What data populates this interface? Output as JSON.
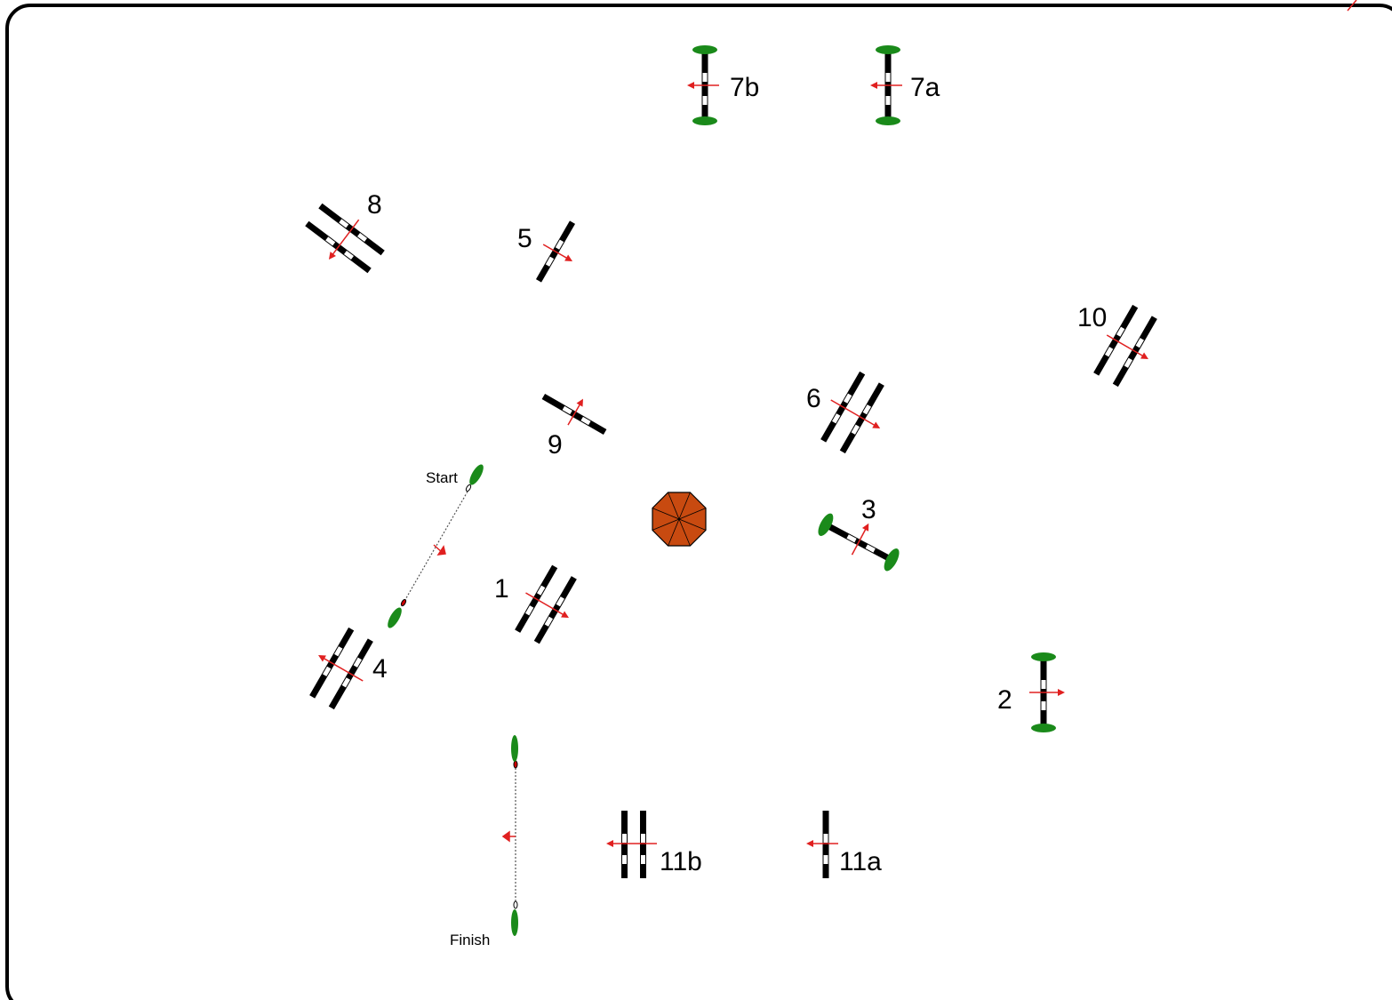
{
  "course": {
    "start_label": "Start",
    "finish_label": "Finish",
    "jumps": [
      {
        "label": "1"
      },
      {
        "label": "2"
      },
      {
        "label": "3"
      },
      {
        "label": "4"
      },
      {
        "label": "5"
      },
      {
        "label": "6"
      },
      {
        "label": "7a"
      },
      {
        "label": "7b"
      },
      {
        "label": "8"
      },
      {
        "label": "9"
      },
      {
        "label": "10"
      },
      {
        "label": "11a"
      },
      {
        "label": "11b"
      }
    ]
  },
  "colors": {
    "arena_border": "#000000",
    "pole_dark": "#000000",
    "pole_light": "#ffffff",
    "direction_arrow": "#e02020",
    "wing_green": "#1a8a1a",
    "obstacle_fill": "#c84a10"
  },
  "icons": {
    "direction": "arrow-icon",
    "wing": "shrub-icon",
    "center_obstacle": "octagon-icon"
  }
}
